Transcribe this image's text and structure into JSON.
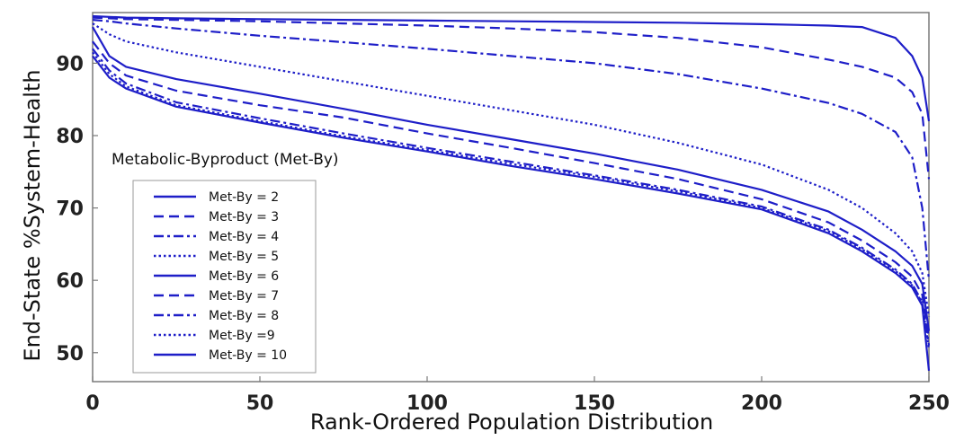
{
  "chart_data": {
    "type": "line",
    "title": "",
    "xlabel": "Rank-Ordered Population Distribution",
    "ylabel": "End-State %System-Health",
    "annotation": "Metabolic-Byproduct (Met-By)",
    "xlim": [
      0,
      250
    ],
    "ylim": [
      46,
      97
    ],
    "xticks": [
      0,
      50,
      100,
      150,
      200,
      250
    ],
    "yticks": [
      50,
      60,
      70,
      80,
      90
    ],
    "grid": false,
    "legend_position": "lower-left",
    "line_color": "#1e1ec8",
    "x": [
      0,
      5,
      10,
      25,
      50,
      75,
      100,
      125,
      150,
      175,
      200,
      220,
      230,
      240,
      245,
      248,
      250
    ],
    "series": [
      {
        "name": "Met-By = 2",
        "dash": "solid",
        "values": [
          96.5,
          96.4,
          96.3,
          96.2,
          96.1,
          96.0,
          95.9,
          95.8,
          95.7,
          95.6,
          95.4,
          95.2,
          95.0,
          93.5,
          91.0,
          88.0,
          82.0
        ]
      },
      {
        "name": "Met-By = 3",
        "dash": "dashed",
        "values": [
          96.3,
          96.2,
          96.1,
          96.0,
          95.8,
          95.5,
          95.2,
          94.8,
          94.3,
          93.5,
          92.2,
          90.5,
          89.5,
          88.0,
          86.0,
          83.0,
          74.0
        ]
      },
      {
        "name": "Met-By = 4",
        "dash": "dashdot",
        "values": [
          96.0,
          95.8,
          95.5,
          94.8,
          93.8,
          92.9,
          92.0,
          91.0,
          90.0,
          88.5,
          86.5,
          84.5,
          83.0,
          80.5,
          77.0,
          70.0,
          60.0
        ]
      },
      {
        "name": "Met-By = 5",
        "dash": "dotted",
        "values": [
          95.5,
          94.0,
          93.0,
          91.5,
          89.5,
          87.5,
          85.5,
          83.5,
          81.5,
          79.0,
          76.0,
          72.5,
          70.0,
          66.5,
          64.0,
          61.0,
          55.0
        ]
      },
      {
        "name": "Met-By = 6",
        "dash": "solid",
        "values": [
          95.0,
          91.0,
          89.5,
          87.8,
          85.8,
          83.7,
          81.5,
          79.5,
          77.5,
          75.3,
          72.5,
          69.5,
          67.0,
          64.0,
          62.0,
          59.5,
          53.0
        ]
      },
      {
        "name": "Met-By = 7",
        "dash": "dashed",
        "values": [
          93.0,
          90.0,
          88.3,
          86.2,
          84.2,
          82.5,
          80.3,
          78.3,
          76.2,
          74.0,
          71.2,
          68.0,
          65.5,
          62.5,
          60.5,
          58.0,
          52.0
        ]
      },
      {
        "name": "Met-By = 8",
        "dash": "dashdot",
        "values": [
          92.0,
          89.0,
          87.2,
          84.6,
          82.4,
          80.3,
          78.3,
          76.4,
          74.5,
          72.5,
          70.2,
          67.0,
          64.5,
          61.5,
          59.5,
          57.0,
          51.0
        ]
      },
      {
        "name": "Met-By =9",
        "dash": "dotted",
        "values": [
          91.5,
          88.5,
          86.8,
          84.2,
          82.0,
          79.9,
          78.0,
          76.1,
          74.3,
          72.3,
          70.0,
          66.8,
          64.3,
          61.3,
          59.3,
          56.8,
          50.5
        ]
      },
      {
        "name": "Met-By = 10",
        "dash": "solid",
        "values": [
          91.0,
          88.0,
          86.5,
          84.0,
          81.8,
          79.7,
          77.8,
          75.8,
          74.0,
          72.0,
          69.8,
          66.5,
          64.0,
          61.0,
          59.0,
          56.5,
          47.5
        ]
      }
    ]
  }
}
